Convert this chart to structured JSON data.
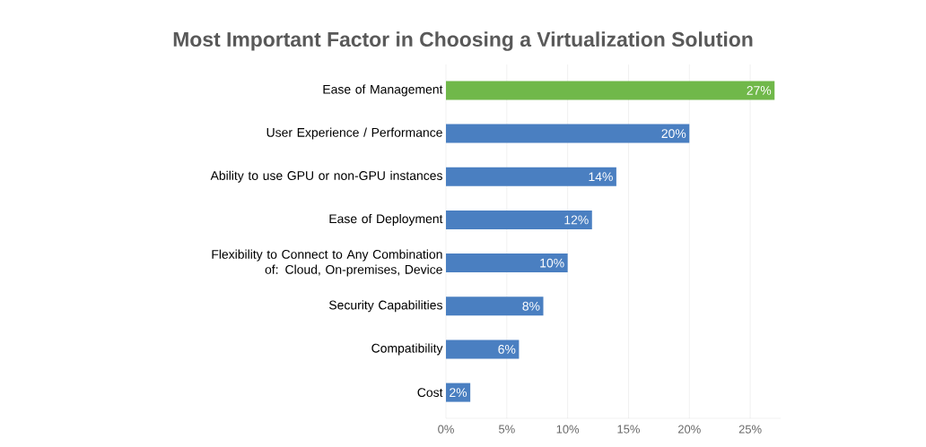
{
  "chart_data": {
    "type": "bar",
    "orientation": "horizontal",
    "title": "Most Important Factor in Choosing a Virtualization Solution",
    "categories": [
      "Ease of Management",
      "User Experience / Performance",
      "Ability to use GPU or non-GPU instances",
      "Ease of Deployment",
      "Flexibility to Connect to Any Combination of: Cloud, On-premises, Device",
      "Security Capabilities",
      "Compatibility",
      "Cost"
    ],
    "values": [
      27,
      20,
      14,
      12,
      10,
      8,
      6,
      2
    ],
    "value_labels": [
      "27%",
      "20%",
      "14%",
      "12%",
      "10%",
      "8%",
      "6%",
      "2%"
    ],
    "colors": [
      "#70b84a",
      "#4a7fc1",
      "#4a7fc1",
      "#4a7fc1",
      "#4a7fc1",
      "#4a7fc1",
      "#4a7fc1",
      "#4a7fc1"
    ],
    "xlim": [
      0,
      27.5
    ],
    "xticks": [
      {
        "value": 0,
        "label": "0%"
      },
      {
        "value": 5,
        "label": "5%"
      },
      {
        "value": 10,
        "label": "10%"
      },
      {
        "value": 15,
        "label": "15%"
      },
      {
        "value": 20,
        "label": "20%"
      },
      {
        "value": 25,
        "label": "25%"
      }
    ],
    "grid": "x"
  }
}
